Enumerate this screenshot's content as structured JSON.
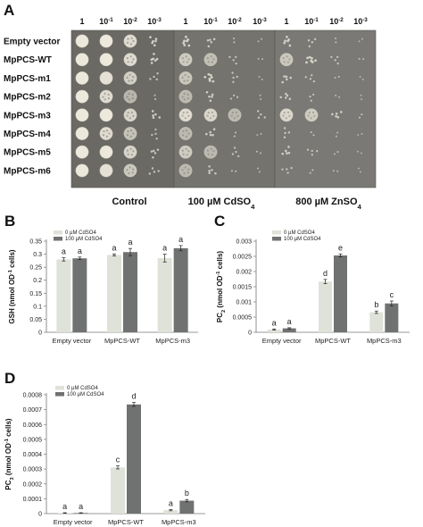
{
  "figure": {
    "panel_a": {
      "letter": "A",
      "dilutions": [
        "1",
        "10",
        "10",
        "10"
      ],
      "dilution_exponents": [
        "",
        "-1",
        "-2",
        "-3"
      ],
      "strains": [
        "Empty vector",
        "MpPCS-WT",
        "MpPCS-m1",
        "MpPCS-m2",
        "MpPCS-m3",
        "MpPCS-m4",
        "MpPCS-m5",
        "MpPCS-m6"
      ],
      "conditions": [
        "Control",
        "100 µM CdSO",
        "800 µM ZnSO"
      ],
      "condition_subscripts": [
        "",
        "4",
        "4"
      ],
      "spot_growth": {
        "Control": [
          [
            1.0,
            1.0,
            0.9,
            0.5
          ],
          [
            1.0,
            1.0,
            0.9,
            0.5
          ],
          [
            1.0,
            0.95,
            0.8,
            0.35
          ],
          [
            1.0,
            0.9,
            0.6,
            0.2
          ],
          [
            1.0,
            1.0,
            0.85,
            0.45
          ],
          [
            1.0,
            0.9,
            0.7,
            0.3
          ],
          [
            1.0,
            1.0,
            0.85,
            0.4
          ],
          [
            1.0,
            0.95,
            0.75,
            0.35
          ]
        ],
        "100 µM CdSO4": [
          [
            0.55,
            0.4,
            0.2,
            0.1
          ],
          [
            0.75,
            0.65,
            0.3,
            0.1
          ],
          [
            0.7,
            0.55,
            0.3,
            0.1
          ],
          [
            0.6,
            0.45,
            0.25,
            0.1
          ],
          [
            0.9,
            0.85,
            0.6,
            0.35
          ],
          [
            0.6,
            0.45,
            0.2,
            0.1
          ],
          [
            0.75,
            0.6,
            0.3,
            0.15
          ],
          [
            0.6,
            0.4,
            0.2,
            0.1
          ]
        ],
        "800 µM ZnSO4": [
          [
            0.5,
            0.35,
            0.15,
            0.05
          ],
          [
            0.7,
            0.55,
            0.3,
            0.15
          ],
          [
            0.45,
            0.3,
            0.15,
            0.05
          ],
          [
            0.4,
            0.25,
            0.1,
            0.05
          ],
          [
            0.85,
            0.75,
            0.45,
            0.2
          ],
          [
            0.35,
            0.2,
            0.1,
            0.05
          ],
          [
            0.45,
            0.3,
            0.15,
            0.05
          ],
          [
            0.3,
            0.2,
            0.1,
            0.05
          ]
        ]
      }
    },
    "panel_b": {
      "letter": "B"
    },
    "panel_c": {
      "letter": "C"
    },
    "panel_d": {
      "letter": "D"
    },
    "colors": {
      "light_bar": "#dfe2d8",
      "dark_bar": "#6f7270",
      "plate": "#6e6c66",
      "colony": "#ece8dc"
    }
  },
  "chart_data": [
    {
      "panel": "B",
      "type": "bar",
      "categories": [
        "Empty vector",
        "MpPCS-WT",
        "MpPCS-m3"
      ],
      "series": [
        {
          "name": "0 µM CdSO4",
          "values": [
            0.28,
            0.297,
            0.285
          ],
          "errors": [
            0.006,
            0.004,
            0.015
          ]
        },
        {
          "name": "100 µM CdSO4",
          "values": [
            0.284,
            0.308,
            0.323
          ],
          "errors": [
            0.005,
            0.014,
            0.01
          ]
        }
      ],
      "letters": [
        [
          "a",
          "a"
        ],
        [
          "a",
          "a"
        ],
        [
          "a",
          "a"
        ]
      ],
      "ylabel": "GSH (nmol OD⁻¹ cells)",
      "ylim": [
        0,
        0.35
      ],
      "yticks": [
        "0",
        "0.05",
        "0.1",
        "0.15",
        "0.2",
        "0.25",
        "0.3",
        "0.35"
      ],
      "grid": false,
      "legend": "top-left"
    },
    {
      "panel": "C",
      "type": "bar",
      "categories": [
        "Empty vector",
        "MpPCS-WT",
        "MpPCS-m3"
      ],
      "series": [
        {
          "name": "0 µM CdSO4",
          "values": [
            9e-05,
            0.00167,
            0.00066
          ],
          "errors": [
            2e-05,
            7e-05,
            4e-05
          ]
        },
        {
          "name": "100 µM CdSO4",
          "values": [
            0.00013,
            0.00253,
            0.00095
          ],
          "errors": [
            2e-05,
            5e-05,
            8e-05
          ]
        }
      ],
      "letters": [
        [
          "a",
          "a"
        ],
        [
          "d",
          "e"
        ],
        [
          "b",
          "c"
        ]
      ],
      "ylabel": "PC₂ (nmol OD⁻¹ cells)",
      "ylim": [
        0,
        0.003
      ],
      "yticks": [
        "0",
        "0.0005",
        "0.001",
        "0.0015",
        "0.002",
        "0.0025",
        "0.003"
      ],
      "grid": false,
      "legend": "top-left"
    },
    {
      "panel": "D",
      "type": "bar",
      "categories": [
        "Empty vector",
        "MpPCS-WT",
        "MpPCS-m3"
      ],
      "series": [
        {
          "name": "0 µM CdSO4",
          "values": [
            4e-06,
            0.000311,
            2.3e-05
          ],
          "errors": [
            2e-06,
            1e-05,
            4e-06
          ]
        },
        {
          "name": "100 µM CdSO4",
          "values": [
            4e-06,
            0.000735,
            8.7e-05
          ],
          "errors": [
            2e-06,
            1.3e-05,
            8e-06
          ]
        }
      ],
      "letters": [
        [
          "a",
          "a"
        ],
        [
          "c",
          "d"
        ],
        [
          "a",
          "b"
        ]
      ],
      "ylabel": "PC₃ (nmol OD⁻¹ cells)",
      "ylim": [
        0,
        0.0008
      ],
      "yticks": [
        "0",
        "0.0001",
        "0.0002",
        "0.0003",
        "0.0004",
        "0.0005",
        "0.0006",
        "0.0007",
        "0.0008"
      ],
      "grid": false,
      "legend": "top-left"
    }
  ]
}
